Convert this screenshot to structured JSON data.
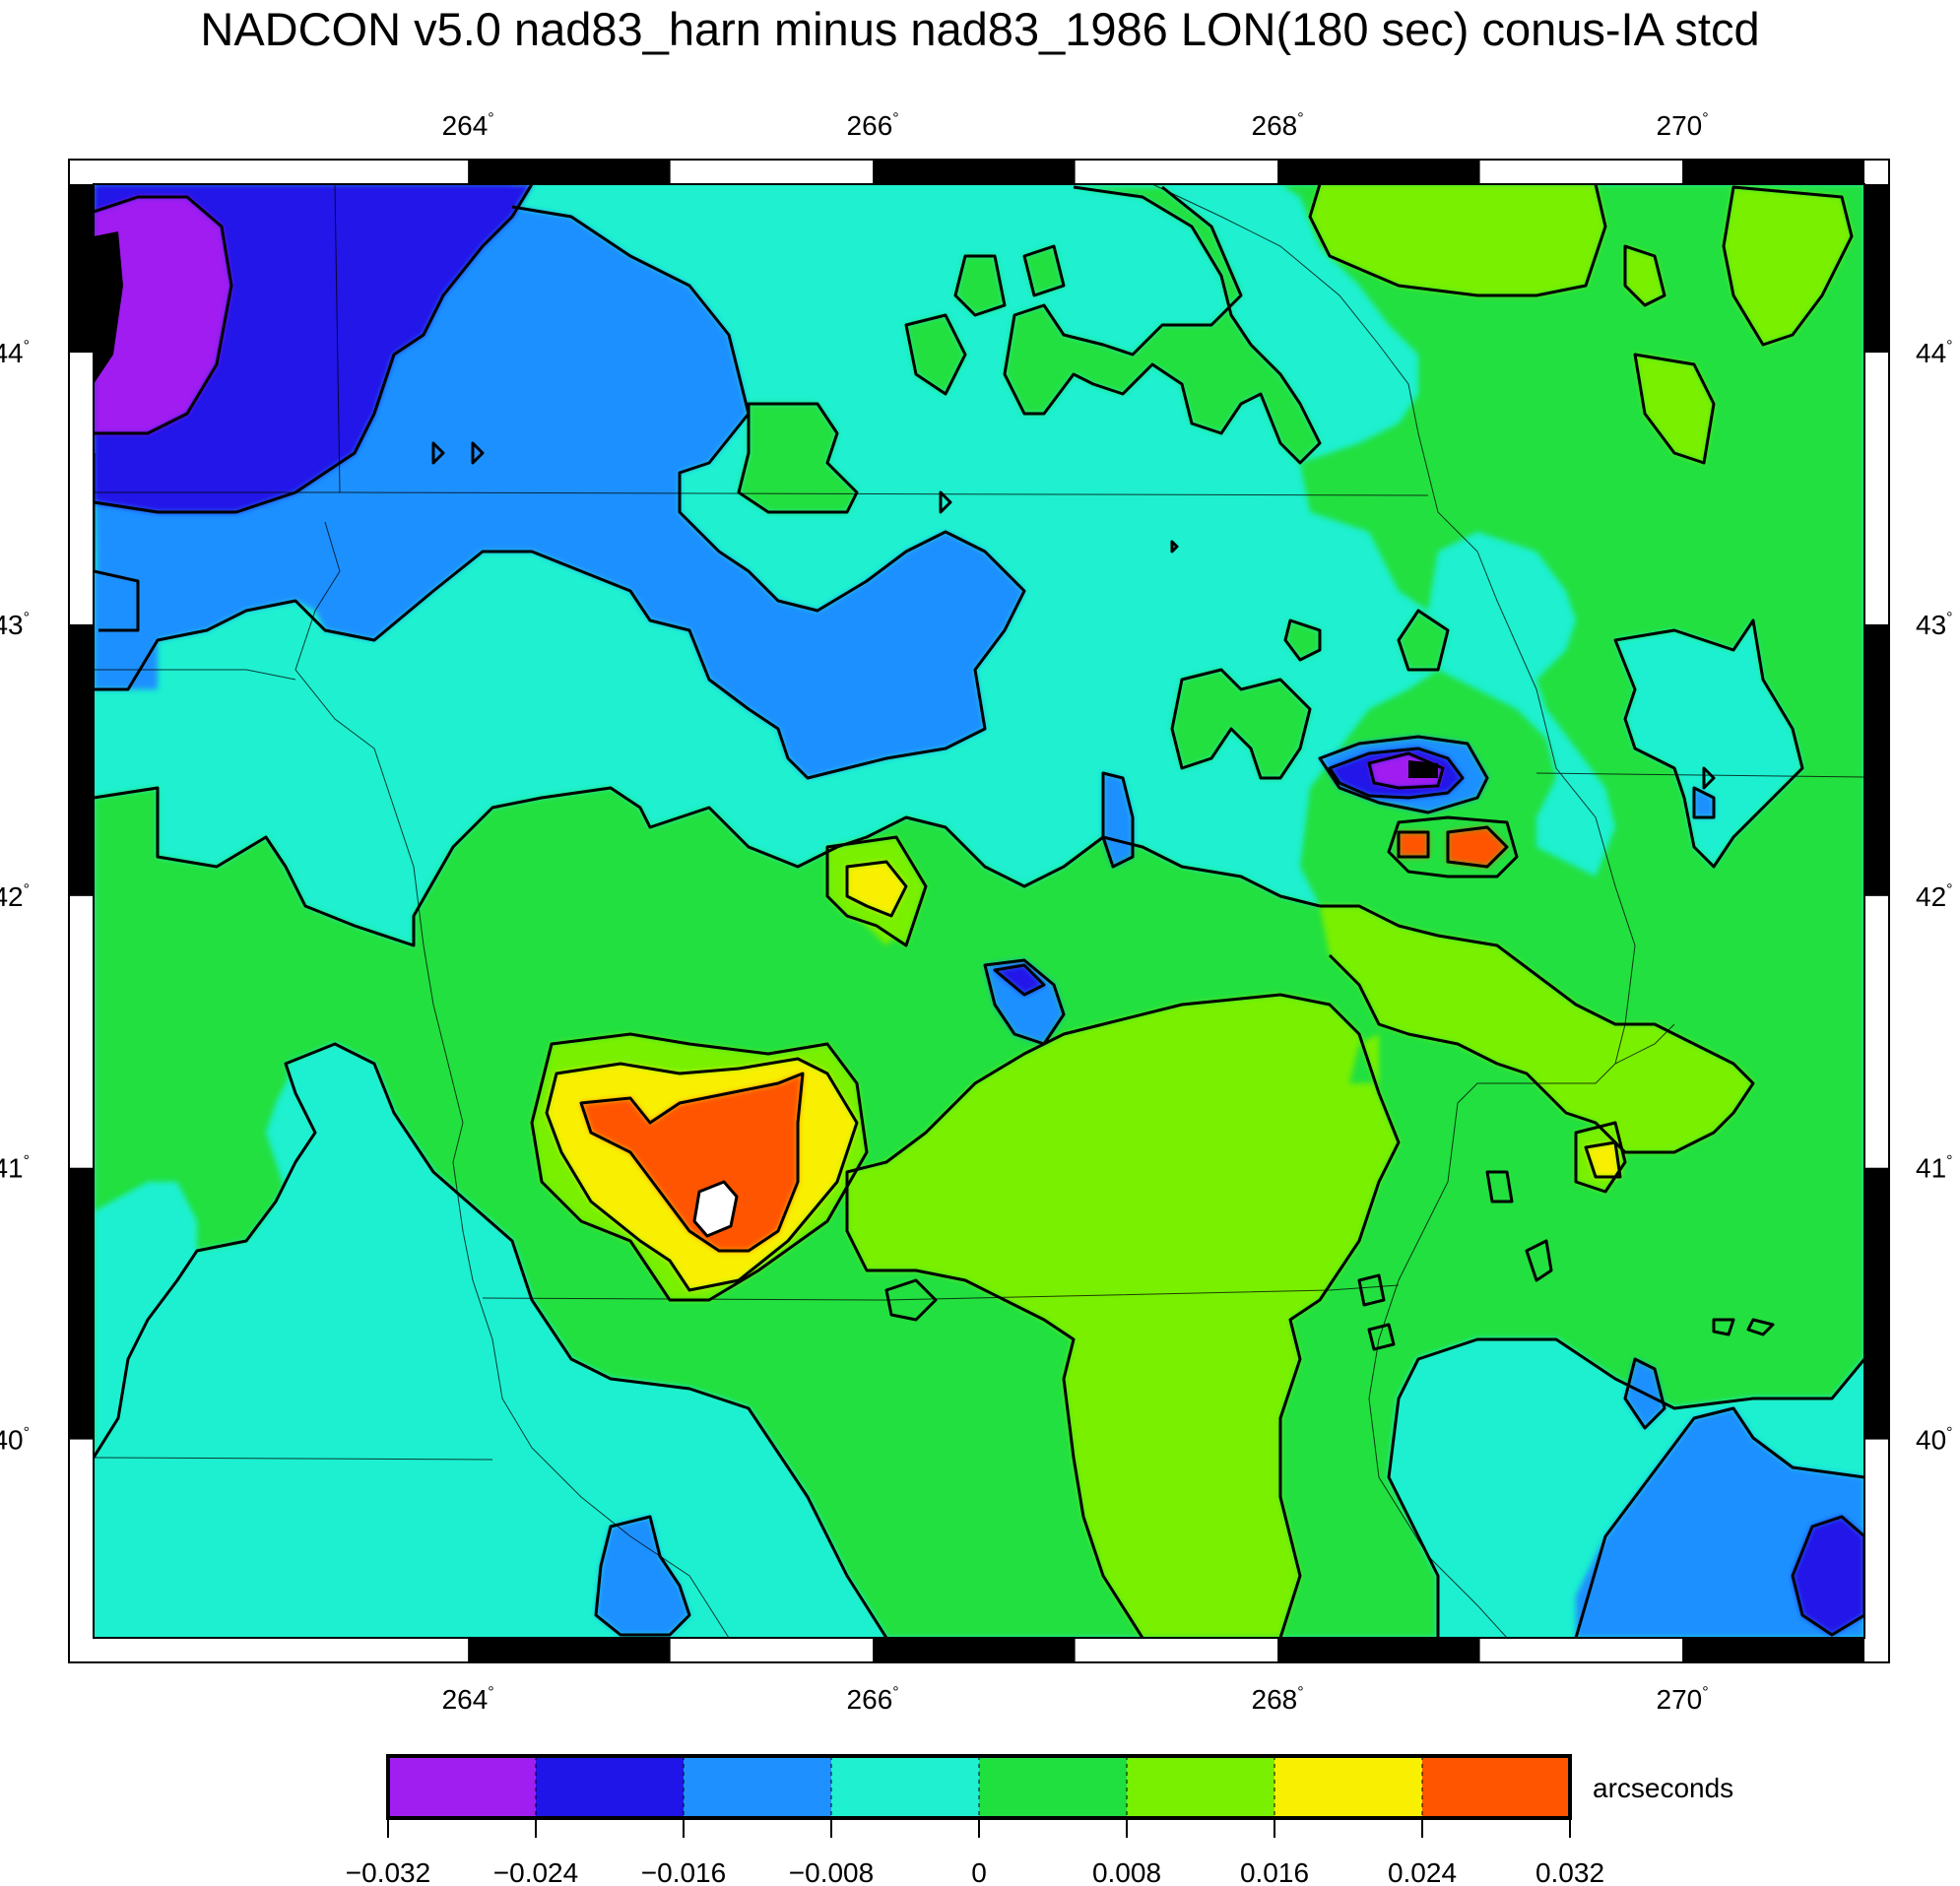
{
  "title": "NADCON v5.0 nad83_harn minus nad83_1986 LON(180 sec) conus-IA stcd",
  "map": {
    "lon_range": [
      262.15,
      270.9
    ],
    "lat_range": [
      39.27,
      44.62
    ],
    "lon_ticks": [
      264,
      266,
      268,
      270
    ],
    "lat_ticks": [
      40,
      41,
      42,
      43,
      44
    ],
    "lon_tick_labels": [
      "264",
      "266",
      "268",
      "270"
    ],
    "lat_tick_labels": [
      "40",
      "41",
      "42",
      "43",
      "44"
    ],
    "degree_symbol": "°"
  },
  "colorbar": {
    "unit_label": "arcseconds",
    "tick_labels": [
      "−0.032",
      "−0.024",
      "−0.016",
      "−0.008",
      "0",
      "0.008",
      "0.016",
      "0.024",
      "0.032"
    ],
    "colors": [
      "#a01ef0",
      "#2015e8",
      "#1e90ff",
      "#1ef0d0",
      "#20e040",
      "#78f000",
      "#f8f000",
      "#ff5500"
    ]
  },
  "chart_data": {
    "type": "heatmap",
    "title": "NADCON v5.0 nad83_harn minus nad83_1986 LON(180 sec) conus-IA stcd",
    "x_range_deg": [
      262.15,
      270.9
    ],
    "y_range_deg": [
      39.27,
      44.62
    ],
    "value_range": [
      -0.032,
      0.032
    ],
    "contour_interval": 0.008,
    "unit": "arcseconds",
    "grid": false
  }
}
